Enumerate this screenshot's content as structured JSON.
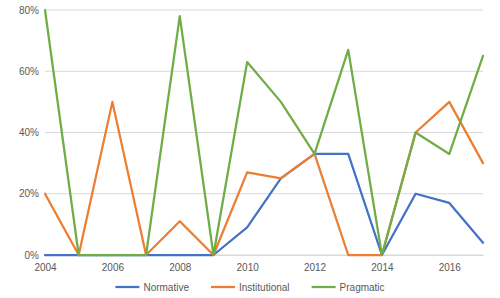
{
  "chart_data": {
    "type": "line",
    "x": [
      2004,
      2005,
      2006,
      2007,
      2008,
      2009,
      2010,
      2011,
      2012,
      2013,
      2014,
      2015,
      2016,
      2017
    ],
    "series": [
      {
        "name": "Normative",
        "color": "#4472c4",
        "values": [
          0,
          0,
          0,
          0,
          0,
          0,
          9,
          25,
          33,
          33,
          0,
          20,
          17,
          4
        ]
      },
      {
        "name": "Institutional",
        "color": "#ed7d31",
        "values": [
          20,
          0,
          50,
          0,
          11,
          0,
          27,
          25,
          33,
          0,
          0,
          40,
          50,
          30
        ]
      },
      {
        "name": "Pragmatic",
        "color": "#70ad47",
        "values": [
          80,
          0,
          0,
          0,
          78,
          0,
          63,
          50,
          33,
          67,
          0,
          40,
          33,
          65
        ]
      }
    ],
    "xlim": [
      2004,
      2017
    ],
    "xticks": [
      2004,
      2006,
      2008,
      2010,
      2012,
      2014,
      2016
    ],
    "ylim": [
      0,
      80
    ],
    "yticks": [
      {
        "value": 0,
        "label": "0%"
      },
      {
        "value": 20,
        "label": "20%"
      },
      {
        "value": 40,
        "label": "40%"
      },
      {
        "value": 60,
        "label": "60%"
      },
      {
        "value": 80,
        "label": "80%"
      }
    ],
    "grid": true,
    "legend": "bottom"
  }
}
